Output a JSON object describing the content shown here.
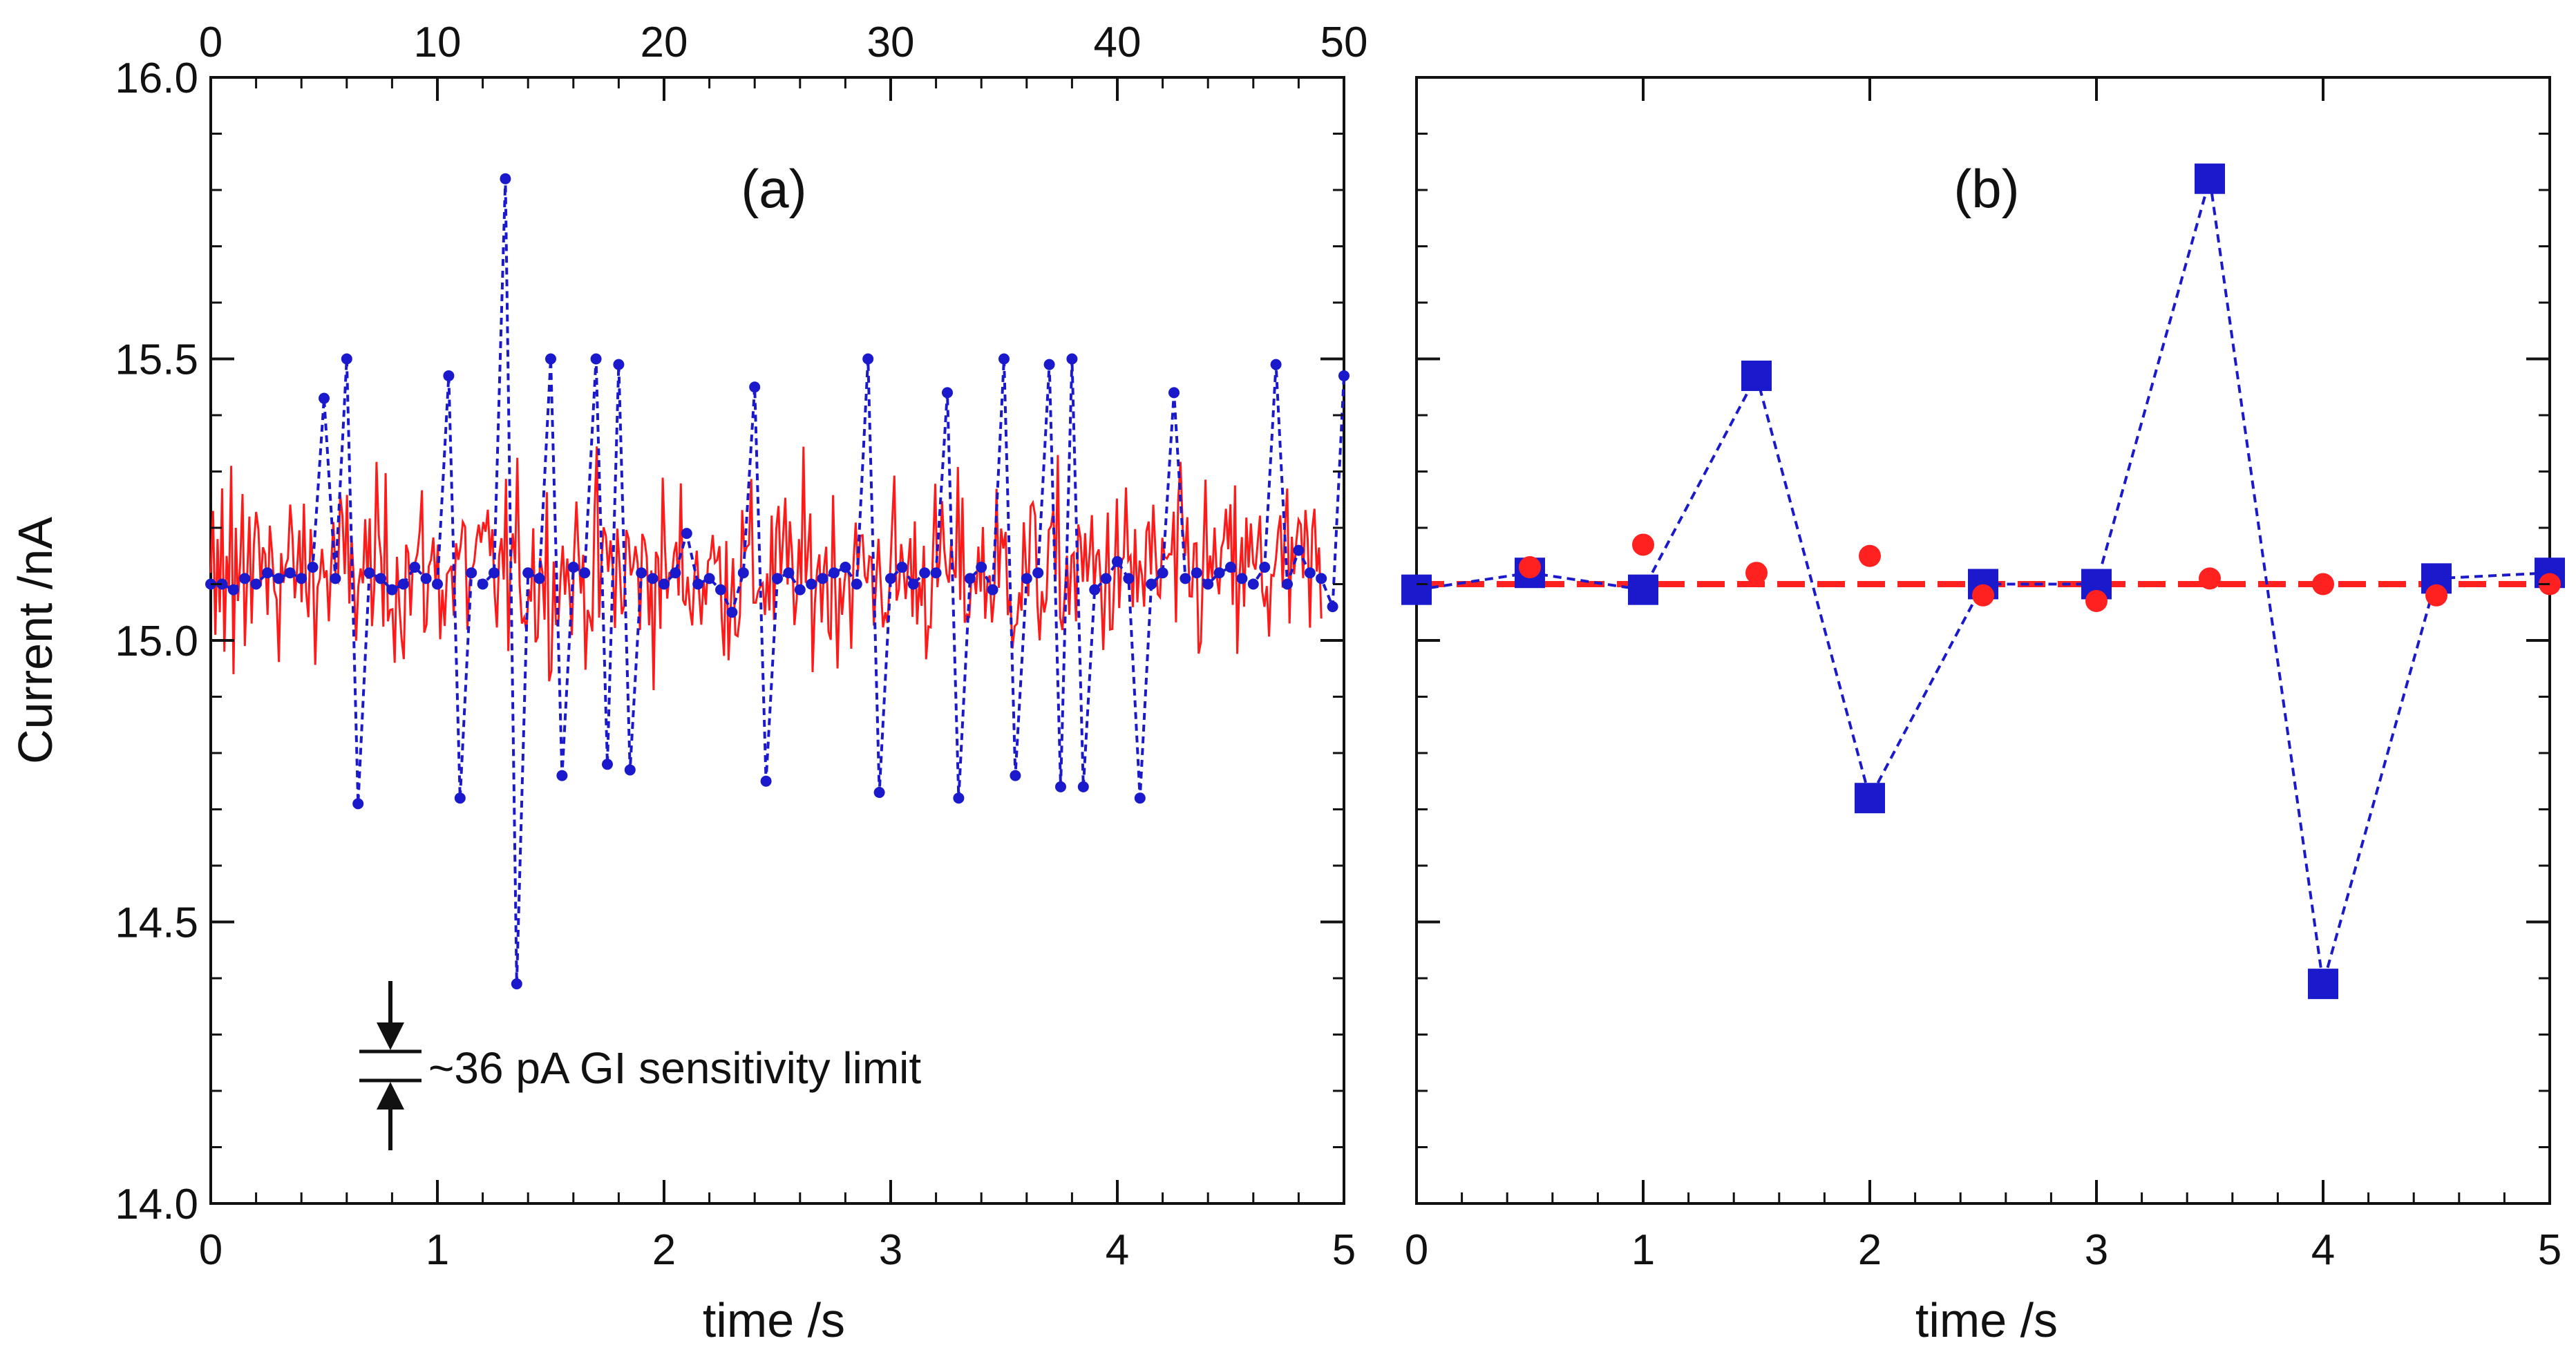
{
  "chart_data": [
    {
      "panel": "(a)",
      "type": "line",
      "xlabel": "time /s",
      "ylabel": "Current /nA",
      "xlim": [
        0,
        5
      ],
      "ylim": [
        14.0,
        16.0
      ],
      "xticks": [
        "0",
        "1",
        "2",
        "3",
        "4",
        "5"
      ],
      "yticks": [
        "14.0",
        "14.5",
        "15.0",
        "15.5",
        "16.0"
      ],
      "top_axis": {
        "xlim": [
          0,
          50
        ],
        "ticks": [
          "0",
          "10",
          "20",
          "30",
          "40",
          "50"
        ]
      },
      "grid": false,
      "annotation": "~36 pA GI sensitivity limit",
      "series": [
        {
          "style": "red-solid-line",
          "color": "#ff1a1a",
          "description_values": "dense noise trace, ~500 points, mean 15.10 nA, spread roughly ±0.2 nA",
          "x_start": 0,
          "x_end": 4.9,
          "n_points": 490,
          "values_sample": [
            15.12,
            15.23,
            15.01,
            15.18,
            15.05,
            15.27,
            14.98,
            15.15,
            15.09,
            15.31,
            14.94,
            15.2,
            15.07,
            15.14,
            15.26,
            14.99,
            15.11,
            15.22,
            15.03,
            15.17
          ]
        },
        {
          "style": "blue-dotted-line-small-circles",
          "color": "#1a1acc",
          "x": [
            0.0,
            0.05,
            0.1,
            0.15,
            0.2,
            0.25,
            0.3,
            0.35,
            0.4,
            0.45,
            0.5,
            0.55,
            0.6,
            0.65,
            0.7,
            0.75,
            0.8,
            0.85,
            0.9,
            0.95,
            1.0,
            1.05,
            1.1,
            1.15,
            1.2,
            1.25,
            1.3,
            1.35,
            1.4,
            1.45,
            1.5,
            1.55,
            1.6,
            1.65,
            1.7,
            1.75,
            1.8,
            1.85,
            1.9,
            1.95,
            2.0,
            2.05,
            2.1,
            2.15,
            2.2,
            2.25,
            2.3,
            2.35,
            2.4,
            2.45,
            2.5,
            2.55,
            2.6,
            2.65,
            2.7,
            2.75,
            2.8,
            2.85,
            2.9,
            2.95,
            3.0,
            3.05,
            3.1,
            3.15,
            3.2,
            3.25,
            3.3,
            3.35,
            3.4,
            3.45,
            3.5,
            3.55,
            3.6,
            3.65,
            3.7,
            3.75,
            3.8,
            3.85,
            3.9,
            3.95,
            4.0,
            4.05,
            4.1,
            4.15,
            4.2,
            4.25,
            4.3,
            4.35,
            4.4,
            4.45,
            4.5,
            4.55,
            4.6,
            4.65,
            4.7,
            4.75,
            4.8,
            4.85,
            4.9,
            4.95,
            5.0
          ],
          "values": [
            15.1,
            15.1,
            15.09,
            15.11,
            15.1,
            15.12,
            15.11,
            15.12,
            15.11,
            15.13,
            15.43,
            15.11,
            15.5,
            14.71,
            15.12,
            15.11,
            15.09,
            15.1,
            15.13,
            15.11,
            15.1,
            15.47,
            14.72,
            15.12,
            15.1,
            15.12,
            15.82,
            14.39,
            15.12,
            15.11,
            15.5,
            14.76,
            15.13,
            15.12,
            15.5,
            14.78,
            15.49,
            14.77,
            15.12,
            15.11,
            15.1,
            15.12,
            15.19,
            15.1,
            15.11,
            15.09,
            15.05,
            15.12,
            15.45,
            14.75,
            15.11,
            15.12,
            15.09,
            15.1,
            15.11,
            15.12,
            15.13,
            15.1,
            15.5,
            14.73,
            15.11,
            15.13,
            15.1,
            15.12,
            15.12,
            15.44,
            14.72,
            15.11,
            15.13,
            15.09,
            15.5,
            14.76,
            15.11,
            15.12,
            15.49,
            14.74,
            15.5,
            14.74,
            15.09,
            15.11,
            15.14,
            15.11,
            14.72,
            15.1,
            15.12,
            15.44,
            15.11,
            15.12,
            15.1,
            15.12,
            15.13,
            15.11,
            15.1,
            15.13,
            15.49,
            15.1,
            15.16,
            15.12,
            15.11,
            15.06,
            15.47
          ]
        }
      ]
    },
    {
      "panel": "(b)",
      "type": "scatter",
      "xlabel": "time /s",
      "xlim": [
        0,
        5
      ],
      "ylim": [
        14.0,
        16.0
      ],
      "xticks": [
        "0",
        "1",
        "2",
        "3",
        "4",
        "5"
      ],
      "grid": false,
      "series": [
        {
          "style": "blue-squares-dotted-line",
          "color": "#1a1acc",
          "x": [
            0,
            0.5,
            1.0,
            1.5,
            2.0,
            2.5,
            3.0,
            3.5,
            4.0,
            4.5,
            5.0
          ],
          "values": [
            15.09,
            15.12,
            15.09,
            15.47,
            14.72,
            15.1,
            15.1,
            15.82,
            14.39,
            15.11,
            15.12
          ]
        },
        {
          "style": "red-circles",
          "color": "#ff2020",
          "x": [
            0.5,
            1.0,
            1.5,
            2.0,
            2.5,
            3.0,
            3.5,
            4.0,
            4.5,
            5.0
          ],
          "values": [
            15.13,
            15.17,
            15.12,
            15.15,
            15.08,
            15.07,
            15.11,
            15.1,
            15.08,
            15.1
          ]
        },
        {
          "style": "red-dashed-mean-line",
          "color": "#ff2020",
          "x": [
            0,
            5
          ],
          "values": [
            15.1,
            15.1
          ]
        }
      ]
    }
  ]
}
